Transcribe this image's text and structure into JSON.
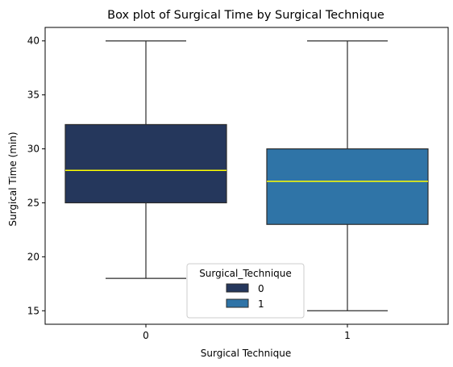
{
  "chart_data": {
    "type": "box",
    "title": "Box plot of Surgical Time by Surgical Technique",
    "xlabel": "Surgical Technique",
    "ylabel": "Surgical Time (min)",
    "categories": [
      "0",
      "1"
    ],
    "ylim": [
      13.75,
      41.25
    ],
    "yticks": [
      15,
      20,
      25,
      30,
      35,
      40
    ],
    "ytick_labels": [
      "15",
      "20",
      "25",
      "30",
      "35",
      "40"
    ],
    "boxes": [
      {
        "category": "0",
        "whisker_low": 18,
        "q1": 25,
        "median": 28,
        "q3": 32.25,
        "whisker_high": 40,
        "color": "#25375c"
      },
      {
        "category": "1",
        "whisker_low": 15,
        "q1": 23,
        "median": 27,
        "q3": 30,
        "whisker_high": 40,
        "color": "#2f74a7"
      }
    ],
    "median_color": "#ffff00",
    "grid": false,
    "legend": {
      "title": "Surgical_Technique",
      "placement": "lower-center",
      "entries": [
        {
          "label": "0",
          "color": "#25375c"
        },
        {
          "label": "1",
          "color": "#2f74a7"
        }
      ]
    }
  }
}
